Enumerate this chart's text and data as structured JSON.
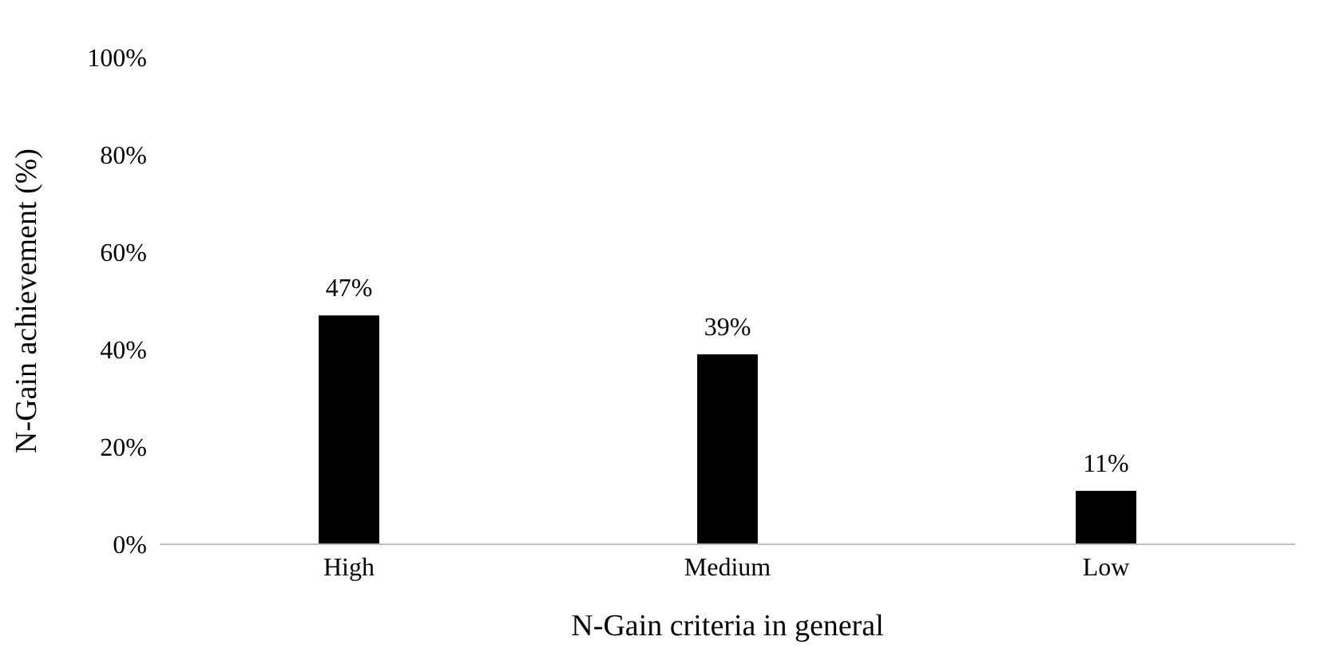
{
  "chart_data": {
    "type": "bar",
    "xlabel": "N-Gain criteria in general",
    "ylabel": "N-Gain achievement (%)",
    "categories": [
      "High",
      "Medium",
      "Low"
    ],
    "values": [
      47,
      39,
      11
    ],
    "color": "#000000",
    "value_labels": [
      "47%",
      "39%",
      "11%"
    ],
    "ylim": [
      0,
      100
    ],
    "yticks": [
      {
        "value": 0,
        "label": "0%"
      },
      {
        "value": 20,
        "label": "20%"
      },
      {
        "value": 40,
        "label": "40%"
      },
      {
        "value": 60,
        "label": "60%"
      },
      {
        "value": 80,
        "label": "80%"
      },
      {
        "value": 100,
        "label": "100%"
      }
    ],
    "grid": false,
    "legend": false
  }
}
